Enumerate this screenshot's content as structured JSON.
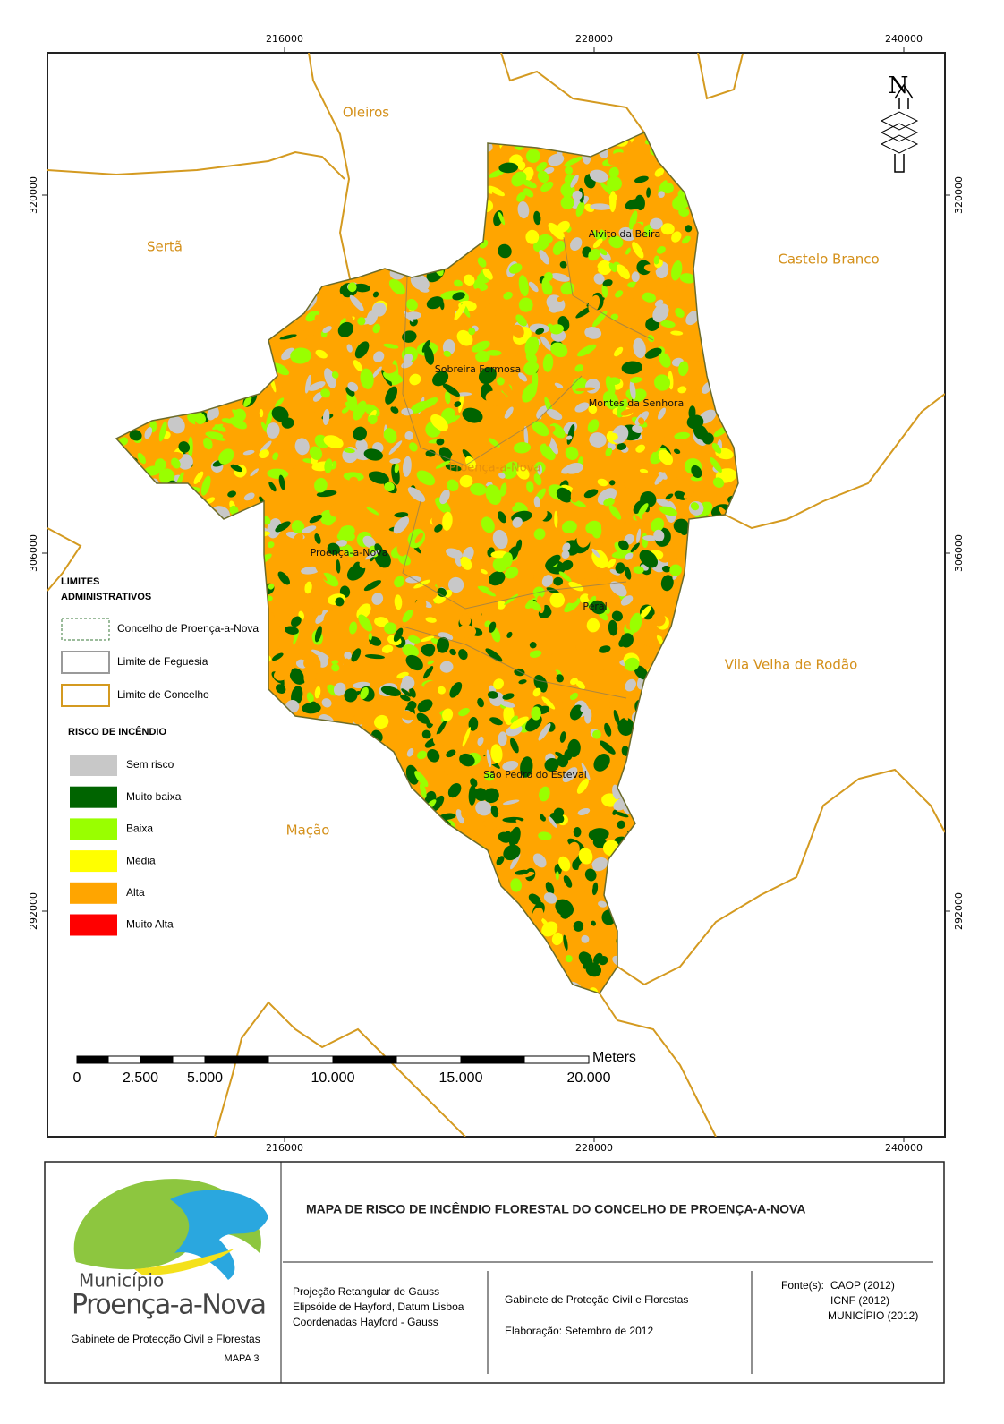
{
  "map": {
    "x_ticks": [
      216000,
      228000,
      240000
    ],
    "y_ticks": [
      320000,
      306000,
      292000
    ],
    "regions": [
      "Oleiros",
      "Sertã",
      "Castelo Branco",
      "Vila Velha de Rodão",
      "Mação"
    ],
    "parishes": [
      "Alvito da Beira",
      "Sobreira Formosa",
      "Montes da Senhora",
      "Proença-a-Nova",
      "Peral",
      "São Pedro do Esteval"
    ],
    "municipality_label": "Proença-a-Nova",
    "north": "N",
    "scale_bar": {
      "labels": [
        "0",
        "2.500",
        "5.000",
        "10.000",
        "15.000",
        "20.000"
      ],
      "unit": "Meters"
    }
  },
  "legend": {
    "boundaries_title": [
      "LIMITES",
      "ADMINISTRATIVOS"
    ],
    "boundaries": [
      {
        "label": "Concelho de Proença-a-Nova",
        "color": "#3a7a3a"
      },
      {
        "label": "Limite de Feguesia",
        "color": "#9a9a9a"
      },
      {
        "label": "Limite de Concelho",
        "color": "#d49a20"
      }
    ],
    "risk_title": "RISCO DE INCÊNDIO",
    "risk": [
      {
        "label": "Sem risco",
        "color": "#c8c8c8"
      },
      {
        "label": "Muito baixa",
        "color": "#006400"
      },
      {
        "label": "Baixa",
        "color": "#99ff00"
      },
      {
        "label": "Média",
        "color": "#ffff00"
      },
      {
        "label": "Alta",
        "color": "#ffa500"
      },
      {
        "label": "Muito Alta",
        "color": "#ff0000"
      }
    ]
  },
  "footer": {
    "title": "MAPA DE RISCO DE INCÊNDIO FLORESTAL DO CONCELHO DE PROENÇA-A-NOVA",
    "logo_small": "Município",
    "logo_large": "Proença-a-Nova",
    "office": "Gabinete de Protecção Civil e Florestas",
    "map_number": "MAPA 3",
    "projection": [
      "Projeção Retangular de Gauss",
      "Elipsóide de Hayford, Datum Lisboa",
      "Coordenadas Hayford - Gauss"
    ],
    "author": "Gabinete de Proteção Civil e Florestas",
    "date": "Elaboração: Setembro de 2012",
    "sources_label": "Fonte(s):",
    "sources": [
      "CAOP (2012)",
      "ICNF (2012)",
      "MUNICÍPIO (2012)"
    ]
  }
}
